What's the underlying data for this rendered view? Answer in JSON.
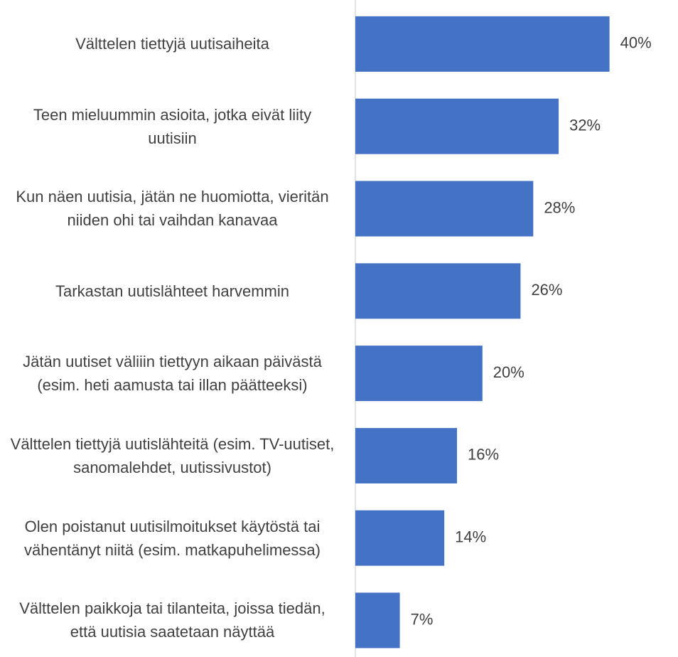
{
  "chart_data": {
    "type": "bar",
    "orientation": "horizontal",
    "categories": [
      "Välttelen tiettyjä uutisaiheita",
      "Teen mieluummin asioita, jotka eivät liity uutisiin",
      "Kun näen uutisia, jätän ne huomiotta, vieritän niiden ohi tai vaihdan kanavaa",
      "Tarkastan uutislähteet harvemmin",
      "Jätän uutiset väliiin tiettyyn aikaan päivästä (esim. heti aamusta tai illan päätteeksi)",
      "Välttelen tiettyjä uutislähteitä (esim. TV-uutiset, sanomalehdet, uutissivustot)",
      "Olen poistanut uutisilmoitukset käytöstä tai vähentänyt niitä (esim. matkapuhelimessa)",
      "Välttelen paikkoja tai tilanteita, joissa tiedän, että uutisia saatetaan näyttää"
    ],
    "values": [
      40,
      32,
      28,
      26,
      20,
      16,
      14,
      7
    ],
    "value_labels": [
      "40%",
      "32%",
      "28%",
      "26%",
      "20%",
      "16%",
      "14%",
      "7%"
    ],
    "color": "#4472c4",
    "xlim": [
      0,
      50
    ]
  }
}
